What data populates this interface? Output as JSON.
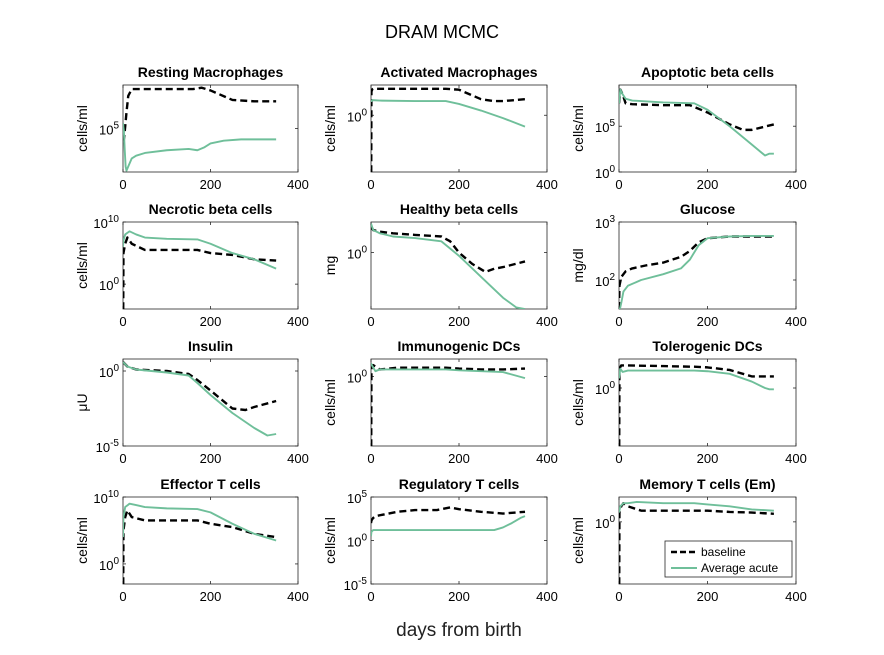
{
  "figure": {
    "title": "DRAM MCMC",
    "xlabel": "days from birth"
  },
  "colors": {
    "baseline": "#000000",
    "average": "#6fbf9a"
  },
  "legend": {
    "placement": "bottom-right of last subplot",
    "entries": [
      "baseline",
      "Average acute"
    ]
  },
  "chart_data": [
    {
      "type": "line",
      "title": "Resting Macrophages",
      "ylabel": "cells/ml",
      "xlim": [
        0,
        400
      ],
      "xticks": [
        "0",
        "200",
        "400"
      ],
      "ylog": true,
      "ylim_log10": [
        3.4,
        6.6
      ],
      "yticks": [
        {
          "label": "10^5",
          "log": 5
        }
      ],
      "series": [
        {
          "name": "baseline",
          "x": [
            0,
            2,
            4,
            8,
            12,
            20,
            40,
            100,
            160,
            180,
            200,
            250,
            300,
            350
          ],
          "log10y": [
            5.1,
            4.6,
            4.9,
            5.6,
            6.2,
            6.45,
            6.45,
            6.45,
            6.45,
            6.5,
            6.4,
            6.05,
            6.0,
            6.0
          ]
        },
        {
          "name": "Average acute",
          "x": [
            0,
            2,
            4,
            6,
            8,
            12,
            20,
            30,
            50,
            100,
            150,
            170,
            185,
            200,
            230,
            270,
            300,
            350
          ],
          "log10y": [
            5.2,
            4.9,
            4.2,
            3.6,
            3.45,
            3.6,
            3.9,
            4.0,
            4.1,
            4.2,
            4.25,
            4.2,
            4.3,
            4.45,
            4.55,
            4.6,
            4.6,
            4.6
          ]
        }
      ]
    },
    {
      "type": "line",
      "title": "Activated Macrophages",
      "ylabel": "cells/ml",
      "xlim": [
        0,
        400
      ],
      "xticks": [
        "0",
        "200",
        "400"
      ],
      "ylog": true,
      "ylim_log10": [
        -6,
        3.2
      ],
      "yticks": [
        {
          "label": "10^0",
          "log": 0
        }
      ],
      "series": [
        {
          "name": "baseline",
          "x": [
            0,
            0.5,
            1,
            3,
            5,
            20,
            100,
            170,
            200,
            250,
            280,
            300,
            350
          ],
          "log10y": [
            -6,
            -6,
            2.5,
            2.75,
            2.8,
            2.8,
            2.8,
            2.8,
            2.7,
            1.7,
            1.5,
            1.5,
            1.7
          ]
        },
        {
          "name": "Average acute",
          "x": [
            0,
            1,
            3,
            20,
            100,
            170,
            200,
            250,
            300,
            350
          ],
          "log10y": [
            1.5,
            1.5,
            1.6,
            1.55,
            1.5,
            1.5,
            1.2,
            0.5,
            -0.3,
            -1.2
          ]
        }
      ]
    },
    {
      "type": "line",
      "title": "Apoptotic beta cells",
      "ylabel": "cells/ml",
      "xlim": [
        0,
        400
      ],
      "xticks": [
        "0",
        "200",
        "400"
      ],
      "ylog": true,
      "ylim_log10": [
        0,
        9.5
      ],
      "yticks": [
        {
          "label": "10^0",
          "log": 0
        },
        {
          "label": "10^5",
          "log": 5
        }
      ],
      "series": [
        {
          "name": "baseline",
          "x": [
            0,
            3,
            8,
            15,
            30,
            100,
            160,
            170,
            200,
            250,
            280,
            300,
            350
          ],
          "log10y": [
            7.5,
            9.0,
            8.5,
            7.5,
            7.4,
            7.3,
            7.3,
            7.1,
            6.5,
            5.2,
            4.6,
            4.6,
            5.2
          ]
        },
        {
          "name": "Average acute",
          "x": [
            0,
            3,
            8,
            15,
            30,
            100,
            170,
            200,
            250,
            300,
            330,
            340,
            350
          ],
          "log10y": [
            7.5,
            9.0,
            8.5,
            8.0,
            7.8,
            7.6,
            7.5,
            6.8,
            5.0,
            3.0,
            1.8,
            2.0,
            2.0
          ]
        }
      ]
    },
    {
      "type": "line",
      "title": "Necrotic beta cells",
      "ylabel": "cells/ml",
      "xlim": [
        0,
        400
      ],
      "xticks": [
        "0",
        "200",
        "400"
      ],
      "ylog": true,
      "ylim_log10": [
        -4,
        10
      ],
      "yticks": [
        {
          "label": "10^0",
          "log": 0
        },
        {
          "label": "10^10",
          "log": 10
        }
      ],
      "series": [
        {
          "name": "baseline",
          "x": [
            0,
            0.5,
            1,
            5,
            10,
            20,
            50,
            100,
            170,
            200,
            250,
            300,
            350
          ],
          "log10y": [
            -4,
            -4,
            5.0,
            6.5,
            7.5,
            6.5,
            5.5,
            5.5,
            5.5,
            5.0,
            4.7,
            4.0,
            3.8
          ]
        },
        {
          "name": "Average acute",
          "x": [
            0,
            1,
            5,
            15,
            30,
            50,
            100,
            170,
            200,
            250,
            300,
            350
          ],
          "log10y": [
            6.0,
            7.0,
            8.0,
            8.5,
            8.0,
            7.5,
            7.3,
            7.2,
            6.5,
            5.0,
            4.0,
            2.5
          ]
        }
      ]
    },
    {
      "type": "line",
      "title": "Healthy beta cells",
      "ylabel": "mg",
      "xlim": [
        0,
        400
      ],
      "xticks": [
        "0",
        "200",
        "400"
      ],
      "ylog": true,
      "ylim_log10": [
        -3.5,
        1.9
      ],
      "yticks": [
        {
          "label": "10^0",
          "log": 0
        }
      ],
      "series": [
        {
          "name": "baseline",
          "x": [
            0,
            5,
            20,
            50,
            100,
            160,
            180,
            200,
            230,
            260,
            280,
            300,
            350
          ],
          "log10y": [
            1.6,
            1.4,
            1.3,
            1.2,
            1.1,
            1.0,
            0.7,
            0.0,
            -0.7,
            -1.2,
            -1.0,
            -0.9,
            -0.55
          ]
        },
        {
          "name": "Average acute",
          "x": [
            0,
            5,
            20,
            50,
            100,
            160,
            200,
            250,
            300,
            330,
            350
          ],
          "log10y": [
            1.8,
            1.4,
            1.2,
            1.0,
            0.9,
            0.7,
            -0.2,
            -1.5,
            -2.8,
            -3.4,
            -3.5
          ]
        }
      ]
    },
    {
      "type": "line",
      "title": "Glucose",
      "ylabel": "mg/dl",
      "xlim": [
        0,
        400
      ],
      "xticks": [
        "0",
        "200",
        "400"
      ],
      "ylog": true,
      "ylim_log10": [
        1.5,
        3.0
      ],
      "yticks": [
        {
          "label": "10^2",
          "log": 2
        },
        {
          "label": "10^3",
          "log": 3
        }
      ],
      "series": [
        {
          "name": "baseline",
          "x": [
            0,
            1,
            5,
            15,
            30,
            60,
            100,
            140,
            160,
            180,
            200,
            250,
            300,
            350
          ],
          "log10y": [
            1.5,
            1.9,
            2.05,
            2.15,
            2.2,
            2.25,
            2.3,
            2.4,
            2.5,
            2.65,
            2.72,
            2.75,
            2.75,
            2.75
          ]
        },
        {
          "name": "Average acute",
          "x": [
            0,
            2,
            5,
            10,
            20,
            50,
            100,
            140,
            160,
            180,
            200,
            250,
            300,
            350
          ],
          "log10y": [
            1.5,
            1.5,
            1.6,
            1.8,
            1.9,
            2.0,
            2.1,
            2.2,
            2.35,
            2.6,
            2.72,
            2.75,
            2.76,
            2.76
          ]
        }
      ]
    },
    {
      "type": "line",
      "title": "Insulin",
      "ylabel": "μU",
      "xlim": [
        0,
        400
      ],
      "xticks": [
        "0",
        "200",
        "400"
      ],
      "ylog": true,
      "ylim_log10": [
        -5.0,
        0.8
      ],
      "yticks": [
        {
          "label": "10^0",
          "log": 0
        },
        {
          "label": "10^-5",
          "log": -5
        }
      ],
      "series": [
        {
          "name": "baseline",
          "x": [
            0,
            10,
            30,
            100,
            150,
            170,
            200,
            250,
            280,
            300,
            350
          ],
          "log10y": [
            0.6,
            0.3,
            0.1,
            0.0,
            -0.2,
            -0.6,
            -1.3,
            -2.5,
            -2.6,
            -2.4,
            -2.0
          ]
        },
        {
          "name": "Average acute",
          "x": [
            0,
            10,
            30,
            100,
            150,
            170,
            200,
            250,
            300,
            330,
            350
          ],
          "log10y": [
            0.6,
            0.3,
            0.1,
            -0.1,
            -0.3,
            -0.8,
            -1.6,
            -2.8,
            -3.8,
            -4.3,
            -4.2
          ]
        }
      ]
    },
    {
      "type": "line",
      "title": "Immunogenic DCs",
      "ylabel": "cells/ml",
      "xlim": [
        0,
        400
      ],
      "xticks": [
        "0",
        "200",
        "400"
      ],
      "ylog": true,
      "ylim_log10": [
        -8,
        2.0
      ],
      "yticks": [
        {
          "label": "10^0",
          "log": 0
        }
      ],
      "series": [
        {
          "name": "baseline",
          "x": [
            0,
            0.5,
            1,
            5,
            20,
            60,
            100,
            170,
            200,
            250,
            300,
            350
          ],
          "log10y": [
            -8,
            -8,
            1.0,
            1.3,
            0.8,
            1.0,
            1.0,
            1.0,
            0.9,
            0.8,
            0.8,
            0.9
          ]
        },
        {
          "name": "Average acute",
          "x": [
            0,
            3,
            10,
            20,
            60,
            100,
            170,
            200,
            250,
            300,
            350
          ],
          "log10y": [
            1.5,
            1.2,
            0.6,
            0.8,
            0.8,
            0.8,
            0.8,
            0.7,
            0.6,
            0.5,
            -0.2
          ]
        }
      ]
    },
    {
      "type": "line",
      "title": "Tolerogenic DCs",
      "ylabel": "cells/ml",
      "xlim": [
        0,
        400
      ],
      "xticks": [
        "0",
        "200",
        "400"
      ],
      "ylog": true,
      "ylim_log10": [
        -9,
        4.5
      ],
      "yticks": [
        {
          "label": "10^0",
          "log": 0
        }
      ],
      "series": [
        {
          "name": "baseline",
          "x": [
            0,
            0.5,
            1,
            5,
            20,
            100,
            170,
            200,
            250,
            300,
            350
          ],
          "log10y": [
            -9,
            -9,
            3.0,
            3.5,
            3.5,
            3.4,
            3.3,
            3.2,
            2.8,
            1.8,
            1.8
          ]
        },
        {
          "name": "Average acute",
          "x": [
            0,
            3,
            8,
            20,
            100,
            170,
            200,
            250,
            300,
            330,
            340,
            350
          ],
          "log10y": [
            1.5,
            3.0,
            2.5,
            2.7,
            2.7,
            2.7,
            2.6,
            2.2,
            1.0,
            0.0,
            -0.2,
            -0.2
          ]
        }
      ]
    },
    {
      "type": "line",
      "title": "Effector T cells",
      "ylabel": "cells/ml",
      "xlim": [
        0,
        400
      ],
      "xticks": [
        "0",
        "200",
        "400"
      ],
      "ylog": true,
      "ylim_log10": [
        -3,
        10
      ],
      "yticks": [
        {
          "label": "10^0",
          "log": 0
        },
        {
          "label": "10^10",
          "log": 10
        }
      ],
      "series": [
        {
          "name": "baseline",
          "x": [
            0,
            0.5,
            1,
            5,
            10,
            20,
            50,
            100,
            170,
            200,
            250,
            300,
            350
          ],
          "log10y": [
            -3,
            -3,
            5.0,
            7.0,
            8.0,
            7.0,
            6.5,
            6.5,
            6.5,
            6.0,
            5.5,
            4.5,
            4.0
          ]
        },
        {
          "name": "Average acute",
          "x": [
            0,
            1,
            5,
            15,
            30,
            50,
            100,
            170,
            200,
            250,
            300,
            350
          ],
          "log10y": [
            4.0,
            7.0,
            8.5,
            9.0,
            8.8,
            8.5,
            8.3,
            8.2,
            7.7,
            6.0,
            4.5,
            3.5
          ]
        }
      ]
    },
    {
      "type": "line",
      "title": "Regulatory T cells",
      "ylabel": "cells/ml",
      "xlim": [
        0,
        400
      ],
      "xticks": [
        "0",
        "200",
        "400"
      ],
      "ylog": true,
      "ylim_log10": [
        -5,
        5
      ],
      "yticks": [
        {
          "label": "10^5",
          "log": 5
        },
        {
          "label": "10^0",
          "log": 0
        },
        {
          "label": "10^-5",
          "log": -5
        }
      ],
      "series": [
        {
          "name": "baseline",
          "x": [
            0,
            1,
            5,
            10,
            30,
            60,
            100,
            150,
            180,
            200,
            250,
            300,
            350
          ],
          "log10y": [
            2.0,
            2.3,
            2.6,
            2.8,
            3.0,
            3.3,
            3.5,
            3.5,
            3.8,
            3.6,
            3.3,
            3.1,
            3.3
          ]
        },
        {
          "name": "Average acute",
          "x": [
            0,
            1,
            5,
            20,
            100,
            200,
            250,
            280,
            300,
            320,
            340,
            350
          ],
          "log10y": [
            0.5,
            1.0,
            1.2,
            1.2,
            1.2,
            1.2,
            1.2,
            1.2,
            1.5,
            2.0,
            2.6,
            2.8
          ]
        }
      ]
    },
    {
      "type": "line",
      "title": "Memory T cells (Em)",
      "ylabel": "cells/ml",
      "xlim": [
        0,
        400
      ],
      "xticks": [
        "0",
        "200",
        "400"
      ],
      "ylog": true,
      "ylim_log10": [
        -10,
        4
      ],
      "yticks": [
        {
          "label": "10^0",
          "log": 0
        }
      ],
      "series": [
        {
          "name": "baseline",
          "x": [
            0,
            0.5,
            1,
            5,
            10,
            20,
            50,
            100,
            170,
            200,
            250,
            300,
            350
          ],
          "log10y": [
            -10,
            -10,
            1.5,
            2.5,
            3.0,
            2.5,
            1.8,
            1.8,
            1.8,
            1.8,
            1.6,
            1.5,
            1.3
          ]
        },
        {
          "name": "Average acute",
          "x": [
            0,
            3,
            10,
            20,
            40,
            100,
            170,
            200,
            250,
            300,
            350
          ],
          "log10y": [
            1.5,
            2.5,
            3.0,
            3.0,
            3.2,
            3.0,
            3.0,
            2.8,
            2.5,
            2.0,
            1.8
          ]
        }
      ]
    }
  ]
}
